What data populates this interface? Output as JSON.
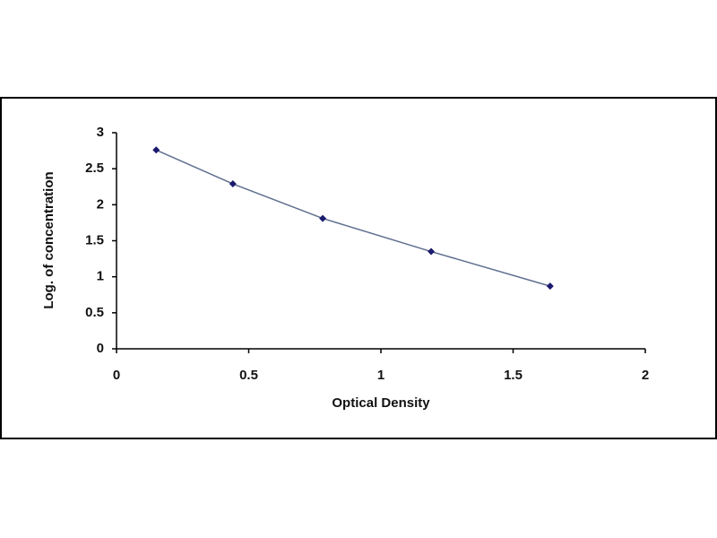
{
  "chart_data": {
    "type": "scatter",
    "x_label": "Optical Density",
    "y_label": "Log. of concentration",
    "x": [
      0.15,
      0.44,
      0.78,
      1.19,
      1.64
    ],
    "values": [
      2.76,
      2.29,
      1.81,
      1.35,
      0.87
    ],
    "color": "#1a1a6e",
    "line_color": "#5f6f8f",
    "connect": true,
    "xlim": [
      0,
      2
    ],
    "xticks": [
      0,
      0.5,
      1,
      1.5,
      2
    ],
    "ylim": [
      0,
      3
    ],
    "yticks": [
      0,
      0.5,
      1,
      1.5,
      2,
      2.5,
      3
    ],
    "grid": false
  }
}
